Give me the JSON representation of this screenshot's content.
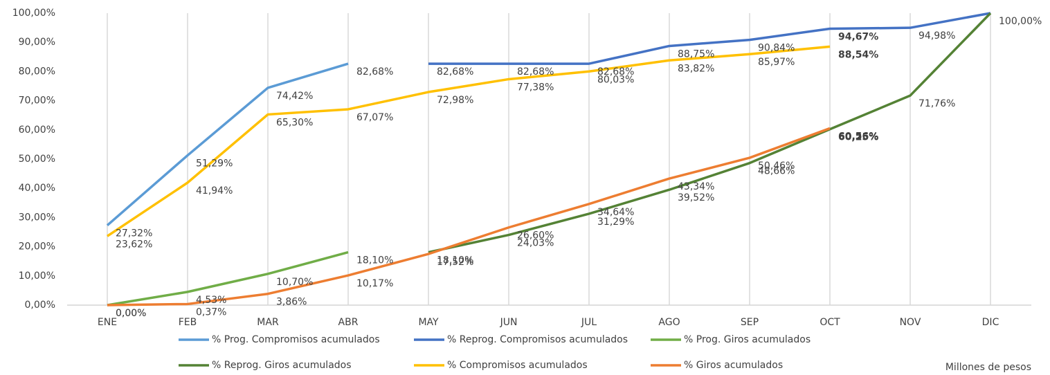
{
  "chart_data": {
    "type": "line",
    "categories": [
      "ENE",
      "FEB",
      "MAR",
      "ABR",
      "MAY",
      "JUN",
      "JUL",
      "AGO",
      "SEP",
      "OCT",
      "NOV",
      "DIC"
    ],
    "ylim": [
      0,
      100
    ],
    "yticks": [
      {
        "value": 0,
        "label": "0,00%"
      },
      {
        "value": 10,
        "label": "10,00%"
      },
      {
        "value": 20,
        "label": "20,00%"
      },
      {
        "value": 30,
        "label": "30,00%"
      },
      {
        "value": 40,
        "label": "40,00%"
      },
      {
        "value": 50,
        "label": "50,00%"
      },
      {
        "value": 60,
        "label": "60,00%"
      },
      {
        "value": 70,
        "label": "70,00%"
      },
      {
        "value": 80,
        "label": "80,00%"
      },
      {
        "value": 90,
        "label": "90,00%"
      },
      {
        "value": 100,
        "label": "100,00%"
      }
    ],
    "grid": true,
    "note": "Millones de pesos",
    "series": [
      {
        "name": "% Prog. Compromisos acumulados",
        "color": "#5b9bd5",
        "values": [
          27.32,
          51.29,
          74.42,
          82.68,
          null,
          null,
          null,
          null,
          null,
          null,
          null,
          null
        ],
        "value_labels": [
          "27,32%",
          "51,29%",
          "74,42%",
          "82,68%",
          null,
          null,
          null,
          null,
          null,
          null,
          null,
          null
        ]
      },
      {
        "name": "% Reprog. Compromisos acumulados",
        "color": "#4472c4",
        "values": [
          null,
          null,
          null,
          null,
          82.68,
          82.68,
          82.68,
          88.75,
          90.84,
          94.67,
          94.98,
          100
        ],
        "value_labels": [
          null,
          null,
          null,
          null,
          "82,68%",
          "82,68%",
          "82,68%",
          "88,75%",
          "90,84%",
          "94,67%",
          "94,98%",
          "100,00%"
        ]
      },
      {
        "name": "% Prog. Giros acumulados",
        "color": "#70ad47",
        "values": [
          0,
          4.53,
          10.7,
          18.1,
          null,
          null,
          null,
          null,
          null,
          null,
          null,
          null
        ],
        "value_labels": [
          "0,00%",
          "4,53%",
          "10,70%",
          "18,10%",
          null,
          null,
          null,
          null,
          null,
          null,
          null,
          null
        ]
      },
      {
        "name": "% Reprog. Giros acumulados",
        "color": "#548235",
        "values": [
          null,
          null,
          null,
          null,
          18.1,
          24.03,
          31.29,
          39.52,
          48.66,
          60.25,
          71.76,
          100
        ],
        "value_labels": [
          null,
          null,
          null,
          null,
          "18,10%",
          "24,03%",
          "31,29%",
          "39,52%",
          "48,66%",
          "60,25%",
          "71,76%",
          null
        ]
      },
      {
        "name": "% Compromisos acumulados",
        "color": "#ffc000",
        "values": [
          23.62,
          41.94,
          65.3,
          67.07,
          72.98,
          77.38,
          80.03,
          83.82,
          85.97,
          88.54,
          null,
          null
        ],
        "value_labels": [
          "23,62%",
          "41,94%",
          "65,30%",
          "67,07%",
          "72,98%",
          "77,38%",
          "80,03%",
          "83,82%",
          "85,97%",
          "88,54%",
          null,
          null
        ]
      },
      {
        "name": "% Giros acumulados",
        "color": "#ed7d31",
        "values": [
          0,
          0.37,
          3.86,
          10.17,
          17.52,
          26.6,
          34.64,
          43.34,
          50.46,
          60.56,
          null,
          null
        ],
        "value_labels": [
          "0,00%",
          "0,37%",
          "3,86%",
          "10,17%",
          "17,52%",
          "26,60%",
          "34,64%",
          "43,34%",
          "50,46%",
          "60,56%",
          null,
          null
        ]
      }
    ]
  }
}
